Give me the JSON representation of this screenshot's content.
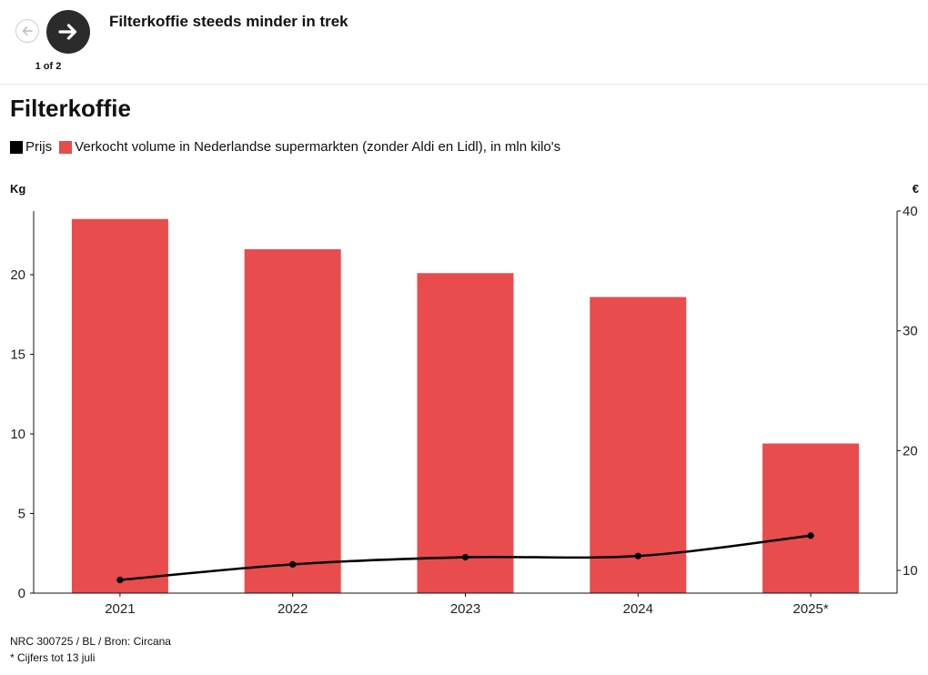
{
  "header": {
    "story_title": "Filterkoffie steeds minder in trek",
    "counter": "1 of 2"
  },
  "colors": {
    "bar": "#e84c4c",
    "line": "#000000",
    "nav_dark": "#2b2b2b"
  },
  "chart_data": {
    "type": "bar",
    "title": "Filterkoffie",
    "legend": {
      "price_label": "Prijs",
      "volume_label": "Verkocht volume in Nederlandse supermarkten (zonder Aldi en Lidl), in mln kilo's"
    },
    "categories": [
      "2021",
      "2022",
      "2023",
      "2024",
      "2025*"
    ],
    "series": [
      {
        "name": "Verkocht volume",
        "axis": "left",
        "type": "bar",
        "values": [
          23.5,
          21.6,
          20.1,
          18.6,
          9.4
        ]
      },
      {
        "name": "Prijs",
        "axis": "right",
        "type": "line",
        "values": [
          9.2,
          10.5,
          11.1,
          11.2,
          12.9
        ]
      }
    ],
    "ylabel": "Kg",
    "ylim": [
      0,
      24
    ],
    "yticks": [
      0,
      5,
      10,
      15,
      20
    ],
    "y2label": "€",
    "y2lim": [
      8.1,
      40
    ],
    "y2ticks": [
      10,
      20,
      30,
      40
    ]
  },
  "footer": {
    "source": "NRC 300725 / BL / Bron: Circana",
    "note": "* Cijfers tot 13 juli"
  }
}
